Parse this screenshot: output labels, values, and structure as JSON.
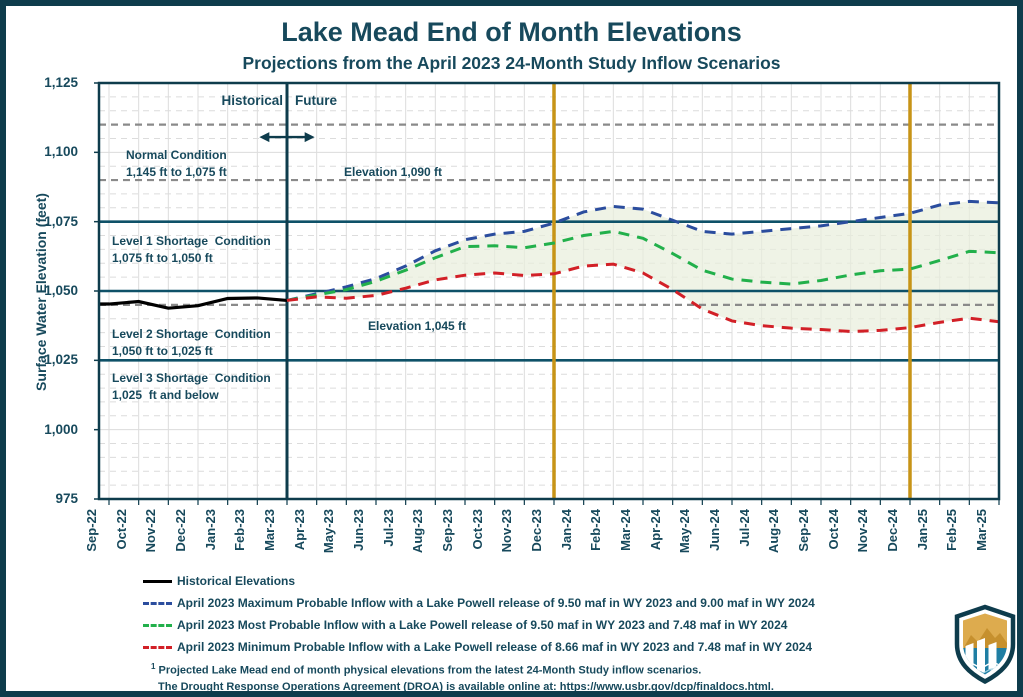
{
  "page": {
    "title": "Lake Mead End of Month Elevations",
    "subtitle": "Projections from the April 2023 24-Month Study Inflow Scenarios"
  },
  "colors": {
    "teal_text": "#17495c",
    "border": "#0e3c4c",
    "teal_line": "#0e5168",
    "gold": "#c79417",
    "ref_dashed": "#8a8a8a",
    "grid_faint": "#dcdcdc",
    "historical_black": "#000000",
    "max_blue": "#2b4d9e",
    "most_green": "#22b04b",
    "min_red": "#d22027",
    "band_green": "#e9efdc"
  },
  "chart_data": {
    "type": "line",
    "title": "Lake Mead End of Month Elevations",
    "subtitle": "Projections from the April 2023 24-Month Study Inflow Scenarios",
    "ylabel": "Surface Water Elevation (feet)",
    "xlabel": "",
    "ylim": [
      975,
      1125
    ],
    "grid": true,
    "legend_position": "bottom-left",
    "x_categories": [
      "Sep-22",
      "Oct-22",
      "Nov-22",
      "Dec-22",
      "Jan-23",
      "Feb-23",
      "Mar-23",
      "Apr-23",
      "May-23",
      "Jun-23",
      "Jul-23",
      "Aug-23",
      "Sep-23",
      "Oct-23",
      "Nov-23",
      "Dec-23",
      "Jan-24",
      "Feb-24",
      "Mar-24",
      "Apr-24",
      "May-24",
      "Jun-24",
      "Jul-24",
      "Aug-24",
      "Sep-24",
      "Oct-24",
      "Nov-24",
      "Dec-24",
      "Jan-25",
      "Feb-25",
      "Mar-25"
    ],
    "yticks": [
      {
        "value": 1125,
        "label": "1,125"
      },
      {
        "value": 1100,
        "label": "1,100"
      },
      {
        "value": 1075,
        "label": "1,075"
      },
      {
        "value": 1050,
        "label": "1,050"
      },
      {
        "value": 1025,
        "label": "1,025"
      },
      {
        "value": 1000,
        "label": "1,000"
      },
      {
        "value": 975,
        "label": "975"
      }
    ],
    "series": [
      {
        "id": "historical",
        "name": "Historical Elevations",
        "color": "#000000",
        "style": "solid",
        "start_index": 0,
        "values": [
          1045.3,
          1046.2,
          1043.8,
          1044.7,
          1047.3,
          1047.5,
          1046.6
        ]
      },
      {
        "id": "max",
        "name": "April 2023 Maximum Probable Inflow with a Lake Powell release of 9.50 maf in WY 2023 and 9.00 maf in WY 2024",
        "color": "#2b4d9e",
        "style": "dashed",
        "start_index": 6,
        "values": [
          1046.6,
          1049.0,
          1051.5,
          1054.5,
          1059.0,
          1064.5,
          1068.5,
          1070.5,
          1071.5,
          1074.5,
          1078.5,
          1080.5,
          1079.5,
          1075.5,
          1071.5,
          1070.5,
          1071.5,
          1072.5,
          1073.5,
          1075.0,
          1076.5,
          1078.0,
          1081.0,
          1082.3,
          1081.8
        ]
      },
      {
        "id": "most",
        "name": "April 2023 Most Probable Inflow with a Lake Powell release of 9.50 maf in WY 2023 and 7.48 maf in WY 2024",
        "color": "#22b04b",
        "style": "dashed",
        "start_index": 6,
        "values": [
          1046.6,
          1048.6,
          1050.5,
          1053.5,
          1057.5,
          1062.0,
          1066.0,
          1066.3,
          1065.6,
          1067.3,
          1070.0,
          1071.5,
          1069.0,
          1063.5,
          1057.5,
          1054.3,
          1053.2,
          1052.5,
          1053.8,
          1055.8,
          1057.3,
          1057.9,
          1061.0,
          1064.3,
          1063.8
        ]
      },
      {
        "id": "min",
        "name": "April 2023 Minimum Probable Inflow with a Lake Powell release of 8.66 maf in WY 2023 and 7.48 maf in WY 2024",
        "color": "#d22027",
        "style": "dashed",
        "start_index": 6,
        "values": [
          1046.6,
          1047.9,
          1047.4,
          1048.4,
          1051.0,
          1054.0,
          1055.7,
          1056.5,
          1055.6,
          1056.2,
          1059.0,
          1059.7,
          1056.5,
          1050.5,
          1043.5,
          1039.2,
          1037.5,
          1036.6,
          1036.1,
          1035.4,
          1035.8,
          1036.8,
          1038.7,
          1040.2,
          1038.9
        ]
      }
    ],
    "band": {
      "upper": "max",
      "lower": "min",
      "color": "#e9efdc"
    },
    "reference_lines_dashed": [
      {
        "value": 1110,
        "label": ""
      },
      {
        "value": 1090,
        "label": "Elevation 1,090 ft"
      },
      {
        "value": 1045,
        "label": "Elevation 1,045 ft"
      }
    ],
    "reference_lines_solid": [
      1075,
      1050,
      1025
    ],
    "vertical_lines": [
      {
        "x": "Mar-23",
        "type": "divider"
      },
      {
        "x": "Dec-23",
        "type": "milestone"
      },
      {
        "x": "Dec-24",
        "type": "milestone"
      }
    ]
  },
  "annotations": {
    "historical_label": "Historical",
    "future_label": "Future",
    "zones": [
      {
        "line1": "Normal Condition",
        "line2": "1,145 ft to 1,075 ft"
      },
      {
        "line1": "Level 1 Shortage  Condition",
        "line2": "1,075 ft to 1,050 ft"
      },
      {
        "line1": "Level 2 Shortage  Condition",
        "line2": "1,050 ft to 1,025 ft"
      },
      {
        "line1": "Level 3 Shortage  Condition",
        "line2": "1,025  ft and below"
      }
    ]
  },
  "footnotes": {
    "sup": "1",
    "line1": " Projected Lake Mead end of month physical elevations from the latest 24-Month Study inflow scenarios.",
    "line2": "The Drought Response Operations Agreement (DROA) is available online at: https://www.usbr.gov/dcp/finaldocs.html."
  }
}
